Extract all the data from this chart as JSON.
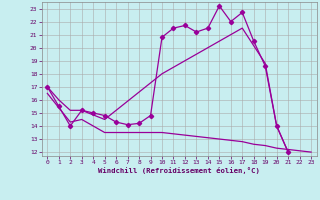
{
  "xlabel": "Windchill (Refroidissement éolien,°C)",
  "x_ticks": [
    0,
    1,
    2,
    3,
    4,
    5,
    6,
    7,
    8,
    9,
    10,
    11,
    12,
    13,
    14,
    15,
    16,
    17,
    18,
    19,
    20,
    21,
    22,
    23
  ],
  "y_ticks": [
    12,
    13,
    14,
    15,
    16,
    17,
    18,
    19,
    20,
    21,
    22,
    23
  ],
  "background_color": "#c8eef0",
  "line_color": "#990099",
  "grid_color": "#aaaaaa",
  "line1_x": [
    0,
    1,
    2,
    3,
    4,
    5,
    6,
    7,
    8,
    9,
    10,
    11,
    12,
    13,
    14,
    15,
    16,
    17,
    18,
    19,
    20,
    21
  ],
  "line1_y": [
    17.0,
    15.5,
    14.0,
    15.2,
    15.0,
    14.8,
    14.3,
    14.1,
    14.2,
    14.8,
    20.8,
    21.5,
    21.7,
    21.2,
    21.5,
    23.2,
    22.0,
    22.7,
    20.5,
    18.6,
    14.0,
    12.0
  ],
  "line2_x": [
    0,
    1,
    2,
    3,
    5,
    10,
    15,
    17,
    19,
    20,
    21
  ],
  "line2_y": [
    17.0,
    16.0,
    15.2,
    15.2,
    14.5,
    18.0,
    20.5,
    21.5,
    18.8,
    14.0,
    12.0
  ],
  "line3_x": [
    0,
    2,
    3,
    5,
    10,
    15,
    16,
    17,
    18,
    19,
    20,
    21,
    22,
    23
  ],
  "line3_y": [
    16.5,
    14.3,
    14.5,
    13.5,
    13.5,
    13.0,
    12.9,
    12.8,
    12.6,
    12.5,
    12.3,
    12.2,
    12.1,
    12.0
  ]
}
